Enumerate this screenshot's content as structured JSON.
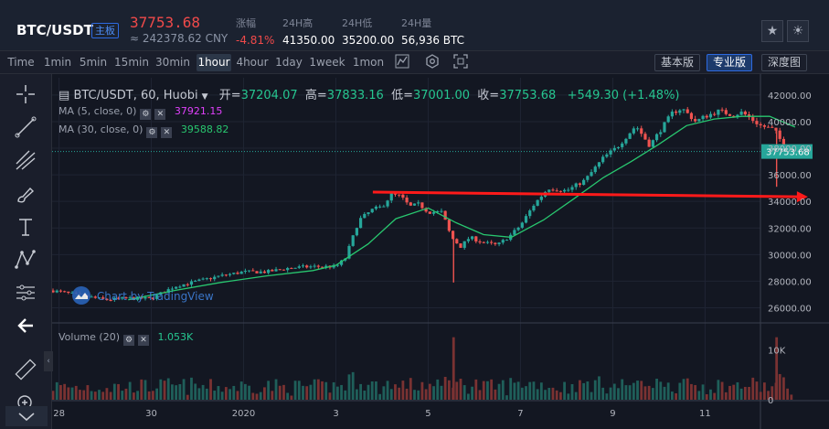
{
  "header": {
    "pair": "BTC/USDT",
    "board_tag": "主板",
    "last_price": "37753.68",
    "cny_price": "≈ 242378.62 CNY",
    "stats": [
      {
        "label": "涨幅",
        "value": "-4.81%",
        "tone": "red"
      },
      {
        "label": "24H高",
        "value": "41350.00",
        "tone": "white"
      },
      {
        "label": "24H低",
        "value": "35200.00",
        "tone": "white"
      },
      {
        "label": "24H量",
        "value": "56,936 BTC",
        "tone": "white"
      }
    ],
    "buttons": [
      {
        "icon": "star-icon",
        "glyph": "★"
      },
      {
        "icon": "theme-icon",
        "glyph": "☀"
      }
    ]
  },
  "toolbar": {
    "timeframes": [
      "Time",
      "1min",
      "5min",
      "15min",
      "30min",
      "1hour",
      "4hour",
      "1day",
      "1week",
      "1mon"
    ],
    "active_timeframe": "1hour",
    "icons": [
      "chart-type-icon",
      "indicator-icon",
      "fullscreen-icon"
    ],
    "views": [
      "基本版",
      "专业版",
      "深度图"
    ],
    "active_view": "专业版"
  },
  "legend": {
    "symbol": "BTC/USDT, 60, Huobi",
    "open_label": "开=",
    "open": "37204.07",
    "high_label": "高=",
    "high": "37833.16",
    "low_label": "低=",
    "low": "37001.00",
    "close_label": "收=",
    "close": "37753.68",
    "change": "+549.30 (+1.48%)",
    "ma5_label": "MA (5, close, 0)",
    "ma5_value": "37921.15",
    "ma30_label": "MA (30, close, 0)",
    "ma30_value": "39588.82",
    "volume_label": "Volume (20)",
    "volume_value": "1.053K"
  },
  "watermark": "Chart by TradingView",
  "colors": {
    "up": "#26a69a",
    "down": "#ef5350",
    "ma5": "#e040fb",
    "ma30": "#28c76f",
    "price_line": "#26a69a",
    "arrow": "#ff1a1a",
    "background": "#131722"
  },
  "chart_data": {
    "type": "candlestick",
    "price_axis": {
      "ticks": [
        26000,
        28000,
        30000,
        32000,
        34000,
        36000,
        38000,
        40000,
        42000
      ],
      "tick_labels": [
        "26000.00",
        "28000.00",
        "30000.00",
        "32000.00",
        "34000.00",
        "36000.00",
        "38000.00",
        "40000.00",
        "42000.00"
      ],
      "range": [
        25000,
        43300
      ],
      "last_price": 37753.68,
      "last_price_label": "37753.68"
    },
    "volume_axis": {
      "ticks": [
        0,
        10000
      ],
      "tick_labels": [
        "0",
        "10K"
      ],
      "range": [
        0,
        15000
      ]
    },
    "x_axis": {
      "tick_labels": [
        "28",
        "30",
        "2020",
        "3",
        "5",
        "7",
        "9",
        "11"
      ],
      "tick_positions_day": [
        0,
        2,
        4,
        6,
        8,
        10,
        12,
        14
      ],
      "range_day": [
        -0.15,
        15.2
      ]
    },
    "price_path": [
      [
        -0.15,
        27300
      ],
      [
        0.5,
        26900
      ],
      [
        1.0,
        26600
      ],
      [
        1.5,
        26700
      ],
      [
        2.0,
        26700
      ],
      [
        2.5,
        27600
      ],
      [
        3.0,
        28000
      ],
      [
        3.5,
        28400
      ],
      [
        4.0,
        28700
      ],
      [
        4.5,
        28700
      ],
      [
        5.0,
        29000
      ],
      [
        5.5,
        29100
      ],
      [
        6.0,
        29100
      ],
      [
        6.2,
        29700
      ],
      [
        6.5,
        32600
      ],
      [
        6.8,
        33400
      ],
      [
        7.0,
        33600
      ],
      [
        7.2,
        34500
      ],
      [
        7.4,
        34400
      ],
      [
        7.6,
        33600
      ],
      [
        7.8,
        33800
      ],
      [
        8.0,
        33200
      ],
      [
        8.3,
        33200
      ],
      [
        8.5,
        31300
      ],
      [
        8.7,
        30600
      ],
      [
        8.9,
        31300
      ],
      [
        9.2,
        30900
      ],
      [
        9.5,
        30700
      ],
      [
        9.8,
        31500
      ],
      [
        10.0,
        32200
      ],
      [
        10.3,
        33800
      ],
      [
        10.6,
        35000
      ],
      [
        11.0,
        34800
      ],
      [
        11.4,
        35600
      ],
      [
        11.8,
        37300
      ],
      [
        12.1,
        38100
      ],
      [
        12.5,
        39700
      ],
      [
        12.8,
        38200
      ],
      [
        13.0,
        39200
      ],
      [
        13.3,
        40700
      ],
      [
        13.5,
        41000
      ],
      [
        13.8,
        40000
      ],
      [
        14.0,
        40400
      ],
      [
        14.3,
        40800
      ],
      [
        14.6,
        40500
      ],
      [
        14.8,
        40700
      ],
      [
        15.0,
        40200
      ],
      [
        15.2,
        39700
      ],
      [
        15.5,
        39400
      ],
      [
        15.7,
        38200
      ],
      [
        15.85,
        37800
      ],
      [
        15.95,
        37754
      ]
    ],
    "ma30_path": [
      [
        1.5,
        26600
      ],
      [
        2.5,
        27300
      ],
      [
        3.5,
        27900
      ],
      [
        4.5,
        28400
      ],
      [
        5.5,
        28800
      ],
      [
        6.0,
        29200
      ],
      [
        6.7,
        30800
      ],
      [
        7.3,
        32700
      ],
      [
        8.0,
        33500
      ],
      [
        8.6,
        32400
      ],
      [
        9.2,
        31500
      ],
      [
        9.8,
        31300
      ],
      [
        10.5,
        32600
      ],
      [
        11.2,
        34300
      ],
      [
        11.8,
        35800
      ],
      [
        12.4,
        37000
      ],
      [
        13.0,
        38300
      ],
      [
        13.6,
        39700
      ],
      [
        14.2,
        40200
      ],
      [
        14.8,
        40400
      ],
      [
        15.4,
        40400
      ],
      [
        15.95,
        39590
      ]
    ],
    "spikes": [
      {
        "day": 8.55,
        "low": 27900
      },
      {
        "day": 15.55,
        "low": 35100
      }
    ],
    "annotation_arrow": {
      "from": [
        6.8,
        34700
      ],
      "to": [
        15.95,
        34350
      ]
    }
  }
}
